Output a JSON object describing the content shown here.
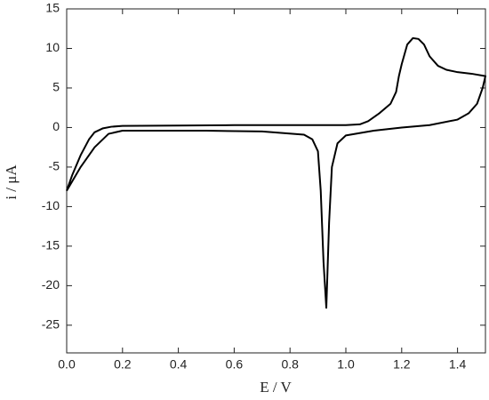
{
  "chart_data": {
    "type": "line",
    "xlabel": "E / V",
    "ylabel": "i / μA",
    "x": [
      0.0,
      0.02,
      0.05,
      0.08,
      0.1,
      0.13,
      0.16,
      0.2,
      0.4,
      0.6,
      0.8,
      1.0,
      1.05,
      1.08,
      1.12,
      1.16,
      1.18,
      1.19,
      1.2,
      1.22,
      1.24,
      1.26,
      1.28,
      1.3,
      1.33,
      1.36,
      1.4,
      1.45,
      1.5,
      1.49,
      1.47,
      1.44,
      1.4,
      1.3,
      1.2,
      1.1,
      1.0,
      0.97,
      0.95,
      0.94,
      0.93,
      0.92,
      0.91,
      0.9,
      0.88,
      0.85,
      0.7,
      0.5,
      0.2,
      0.15,
      0.1,
      0.05,
      0.0
    ],
    "series": [
      {
        "color": "#000000",
        "values": [
          -8,
          -6,
          -3.5,
          -1.5,
          -0.6,
          -0.1,
          0.1,
          0.2,
          0.25,
          0.3,
          0.3,
          0.3,
          0.4,
          0.8,
          1.8,
          3,
          4.5,
          6.5,
          8,
          10.5,
          11.3,
          11.2,
          10.5,
          9,
          7.8,
          7.3,
          7,
          6.8,
          6.5,
          5,
          3,
          1.8,
          1.0,
          0.3,
          0,
          -0.4,
          -1.0,
          -2,
          -5,
          -12,
          -22.8,
          -17,
          -8,
          -3,
          -1.5,
          -0.9,
          -0.5,
          -0.4,
          -0.4,
          -0.8,
          -2.5,
          -5,
          -8
        ]
      }
    ],
    "xlim": [
      0,
      1.5
    ],
    "xticks": [
      {
        "value": 0.0,
        "label": "0.0"
      },
      0.2,
      0.4,
      0.6,
      0.8,
      {
        "value": 1.0,
        "label": "1.0"
      },
      1.2,
      1.4
    ],
    "ylim": [
      -28.5,
      15
    ],
    "yticks": [
      -25,
      -20,
      -15,
      -10,
      -5,
      0,
      5,
      10,
      15
    ]
  }
}
